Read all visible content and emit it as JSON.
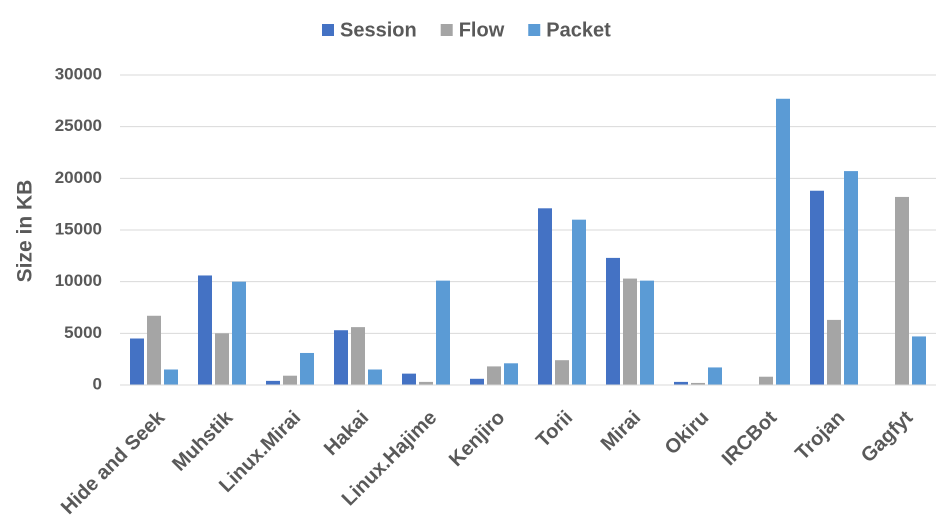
{
  "chart_data": {
    "type": "bar",
    "y_label": "Size in KB",
    "categories": [
      "Hide and Seek",
      "Muhstik",
      "Linux.Mirai",
      "Hakai",
      "Linux.Hajime",
      "Kenjiro",
      "Torii",
      "Mirai",
      "Okiru",
      "IRCBot",
      "Trojan",
      "Gagfyt"
    ],
    "series": [
      {
        "name": "Session",
        "color": "#4472c4",
        "values": [
          4500,
          10600,
          400,
          5300,
          1100,
          600,
          17100,
          12300,
          300,
          0,
          18800,
          0
        ]
      },
      {
        "name": "Flow",
        "color": "#a5a5a5",
        "values": [
          6700,
          5000,
          900,
          5600,
          300,
          1800,
          2400,
          10300,
          200,
          800,
          6300,
          18200
        ]
      },
      {
        "name": "Packet",
        "color": "#5b9bd5",
        "values": [
          1500,
          10000,
          3100,
          1500,
          10100,
          2100,
          16000,
          10100,
          1700,
          27700,
          20700,
          4700
        ]
      }
    ],
    "ylim": [
      0,
      30000
    ],
    "yticks": [
      0,
      5000,
      10000,
      15000,
      20000,
      25000,
      30000
    ],
    "grid": true,
    "legend": "top"
  }
}
